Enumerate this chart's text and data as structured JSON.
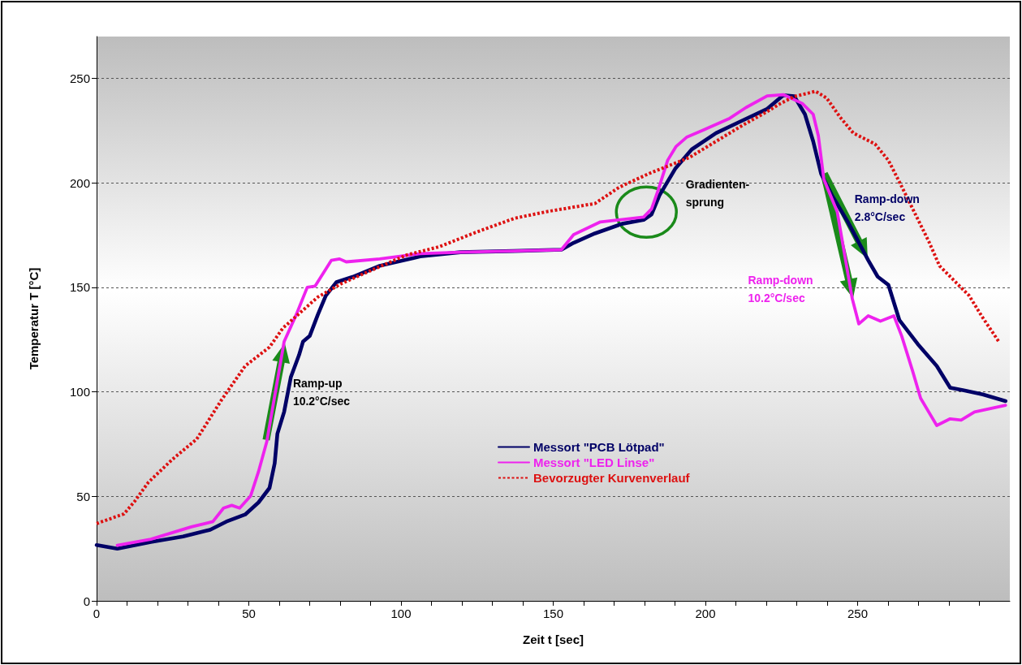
{
  "chart_data": {
    "type": "line",
    "xlabel": "Zeit t [sec]",
    "ylabel": "Temperatur T [°C]",
    "xlim": [
      0,
      300
    ],
    "ylim": [
      0,
      270
    ],
    "xticks": [
      0,
      {
        "value": 10,
        "label": null
      },
      {
        "value": 20,
        "label": null
      },
      {
        "value": 30,
        "label": null
      },
      {
        "value": 40,
        "label": null
      },
      50,
      {
        "value": 60,
        "label": null
      },
      {
        "value": 70,
        "label": null
      },
      {
        "value": 80,
        "label": null
      },
      {
        "value": 90,
        "label": null
      },
      100,
      {
        "value": 110,
        "label": null
      },
      {
        "value": 120,
        "label": null
      },
      {
        "value": 130,
        "label": null
      },
      {
        "value": 140,
        "label": null
      },
      150,
      {
        "value": 160,
        "label": null
      },
      {
        "value": 170,
        "label": null
      },
      {
        "value": 180,
        "label": null
      },
      {
        "value": 190,
        "label": null
      },
      200,
      {
        "value": 210,
        "label": null
      },
      {
        "value": 220,
        "label": null
      },
      {
        "value": 230,
        "label": null
      },
      {
        "value": 240,
        "label": null
      },
      250,
      {
        "value": 260,
        "label": null
      },
      {
        "value": 270,
        "label": null
      },
      {
        "value": 280,
        "label": null
      },
      {
        "value": 290,
        "label": null
      }
    ],
    "yticks": [
      0,
      50,
      100,
      150,
      200,
      250
    ],
    "grid": "y",
    "legend": "bottom",
    "marker": "none",
    "series": [
      {
        "name": "Messort \"PCB Lötpad\"",
        "color": "#000066",
        "line_style": "solid",
        "x": [
          0,
          6.8,
          17.8,
          28.4,
          37.3,
          42.6,
          48.8,
          53.2,
          56.8,
          58.5,
          59.4,
          61.6,
          63.8,
          66.5,
          67.8,
          70,
          72.7,
          75.3,
          78.8,
          84.1,
          93,
          106.3,
          119.5,
          137.2,
          152.7,
          156.7,
          163.7,
          172.6,
          179.7,
          182.3,
          184.9,
          190.2,
          195.5,
          203.5,
          212.4,
          220.3,
          225.6,
          229.2,
          232.7,
          235.4,
          238,
          241.6,
          246.9,
          253.5,
          256.6,
          260.1,
          263.7,
          269.8,
          276,
          280.4,
          284.9,
          291.1,
          298.6
        ],
        "values": [
          26.7,
          25,
          28.2,
          30.8,
          34,
          37.9,
          41.3,
          47.1,
          54,
          65.8,
          80,
          90.4,
          107,
          117.6,
          124,
          126.7,
          137,
          146,
          152.5,
          155,
          160.3,
          164.8,
          166.8,
          167.4,
          168,
          171.3,
          175.8,
          180.4,
          182.3,
          184.9,
          194,
          207,
          216,
          223.8,
          230,
          235.4,
          241.9,
          241.4,
          232.8,
          219.9,
          204.4,
          194,
          181,
          162.9,
          155.1,
          151.2,
          134.4,
          122.8,
          112.4,
          102,
          100.7,
          98.8,
          95.6
        ]
      },
      {
        "name": "Messort \"LED Linse\"",
        "color": "#ee22ee",
        "line_style": "solid",
        "x": [
          6.8,
          17.8,
          31.1,
          38.2,
          41.7,
          44.4,
          47,
          50.6,
          53.2,
          55.9,
          61.6,
          65.6,
          69.2,
          71.8,
          77.1,
          79.8,
          82,
          93,
          106.3,
          119.5,
          137.2,
          152.7,
          156.7,
          165.5,
          179.7,
          182.3,
          184.5,
          187.6,
          190.3,
          193.8,
          199.1,
          208,
          213.3,
          220.3,
          225.6,
          231.8,
          235.4,
          237.1,
          238.9,
          243.3,
          248.2,
          250.4,
          253.5,
          257.5,
          261.9,
          264.5,
          268.1,
          270.7,
          276,
          280.4,
          284,
          288.4,
          298.6
        ],
        "values": [
          26.6,
          29.5,
          35.4,
          37.9,
          44.4,
          45.7,
          44.4,
          50.2,
          61.9,
          76.1,
          124,
          137,
          150,
          150.6,
          162.9,
          163.6,
          162.2,
          163.6,
          166.1,
          166.8,
          167.4,
          168,
          175.2,
          181.3,
          183.6,
          187.5,
          196.6,
          210.8,
          217.3,
          221.8,
          225.1,
          230.9,
          236,
          241.6,
          242.2,
          238,
          232.8,
          222.5,
          201.7,
          186.2,
          144.8,
          132.5,
          136.4,
          133.8,
          136.4,
          126.6,
          109.8,
          96.9,
          83.9,
          87.1,
          86.5,
          90.4,
          93.6
        ]
      },
      {
        "name": "Bevorzugter Kurvenverlauf",
        "color": "#dd1111",
        "line_style": "dashed",
        "x": [
          0,
          9,
          12.5,
          17,
          24.9,
          32.9,
          40.8,
          48.8,
          56.8,
          61.2,
          68.2,
          72.7,
          80.6,
          88.6,
          101.9,
          112.5,
          124.9,
          137.2,
          147.8,
          163.7,
          171.7,
          181.4,
          194.7,
          212.4,
          220.3,
          224.7,
          229.2,
          236.2,
          239.8,
          244.2,
          248.6,
          255.7,
          260.1,
          263.7,
          269,
          273.4,
          276.9,
          282.2,
          286.6,
          291,
          296.4
        ],
        "values": [
          37,
          41.6,
          47.6,
          56.7,
          67.7,
          77.4,
          95.6,
          112.4,
          121.4,
          130.5,
          139.6,
          145.4,
          151.9,
          157.1,
          165.5,
          169.4,
          176.5,
          183,
          186.2,
          190.1,
          197.9,
          204.4,
          212.1,
          227.7,
          234.1,
          238,
          241.3,
          243.8,
          240.6,
          231.5,
          223.8,
          218.6,
          210.8,
          200.5,
          184.9,
          171.9,
          160.3,
          152.5,
          146.1,
          135.7,
          124
        ]
      }
    ],
    "annotations": [
      "Ramp-up\n10.2°C/sec",
      "Gradienten-\nsprung",
      "Ramp-down\n2.8°C/sec",
      "Ramp-down\n10.2°C/sec"
    ]
  }
}
